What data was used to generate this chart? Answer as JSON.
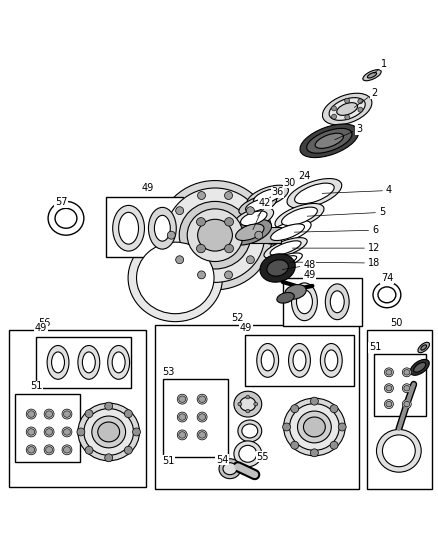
{
  "bg_color": "#ffffff",
  "line_color": "#000000",
  "fig_width": 4.38,
  "fig_height": 5.33,
  "dpi": 100
}
